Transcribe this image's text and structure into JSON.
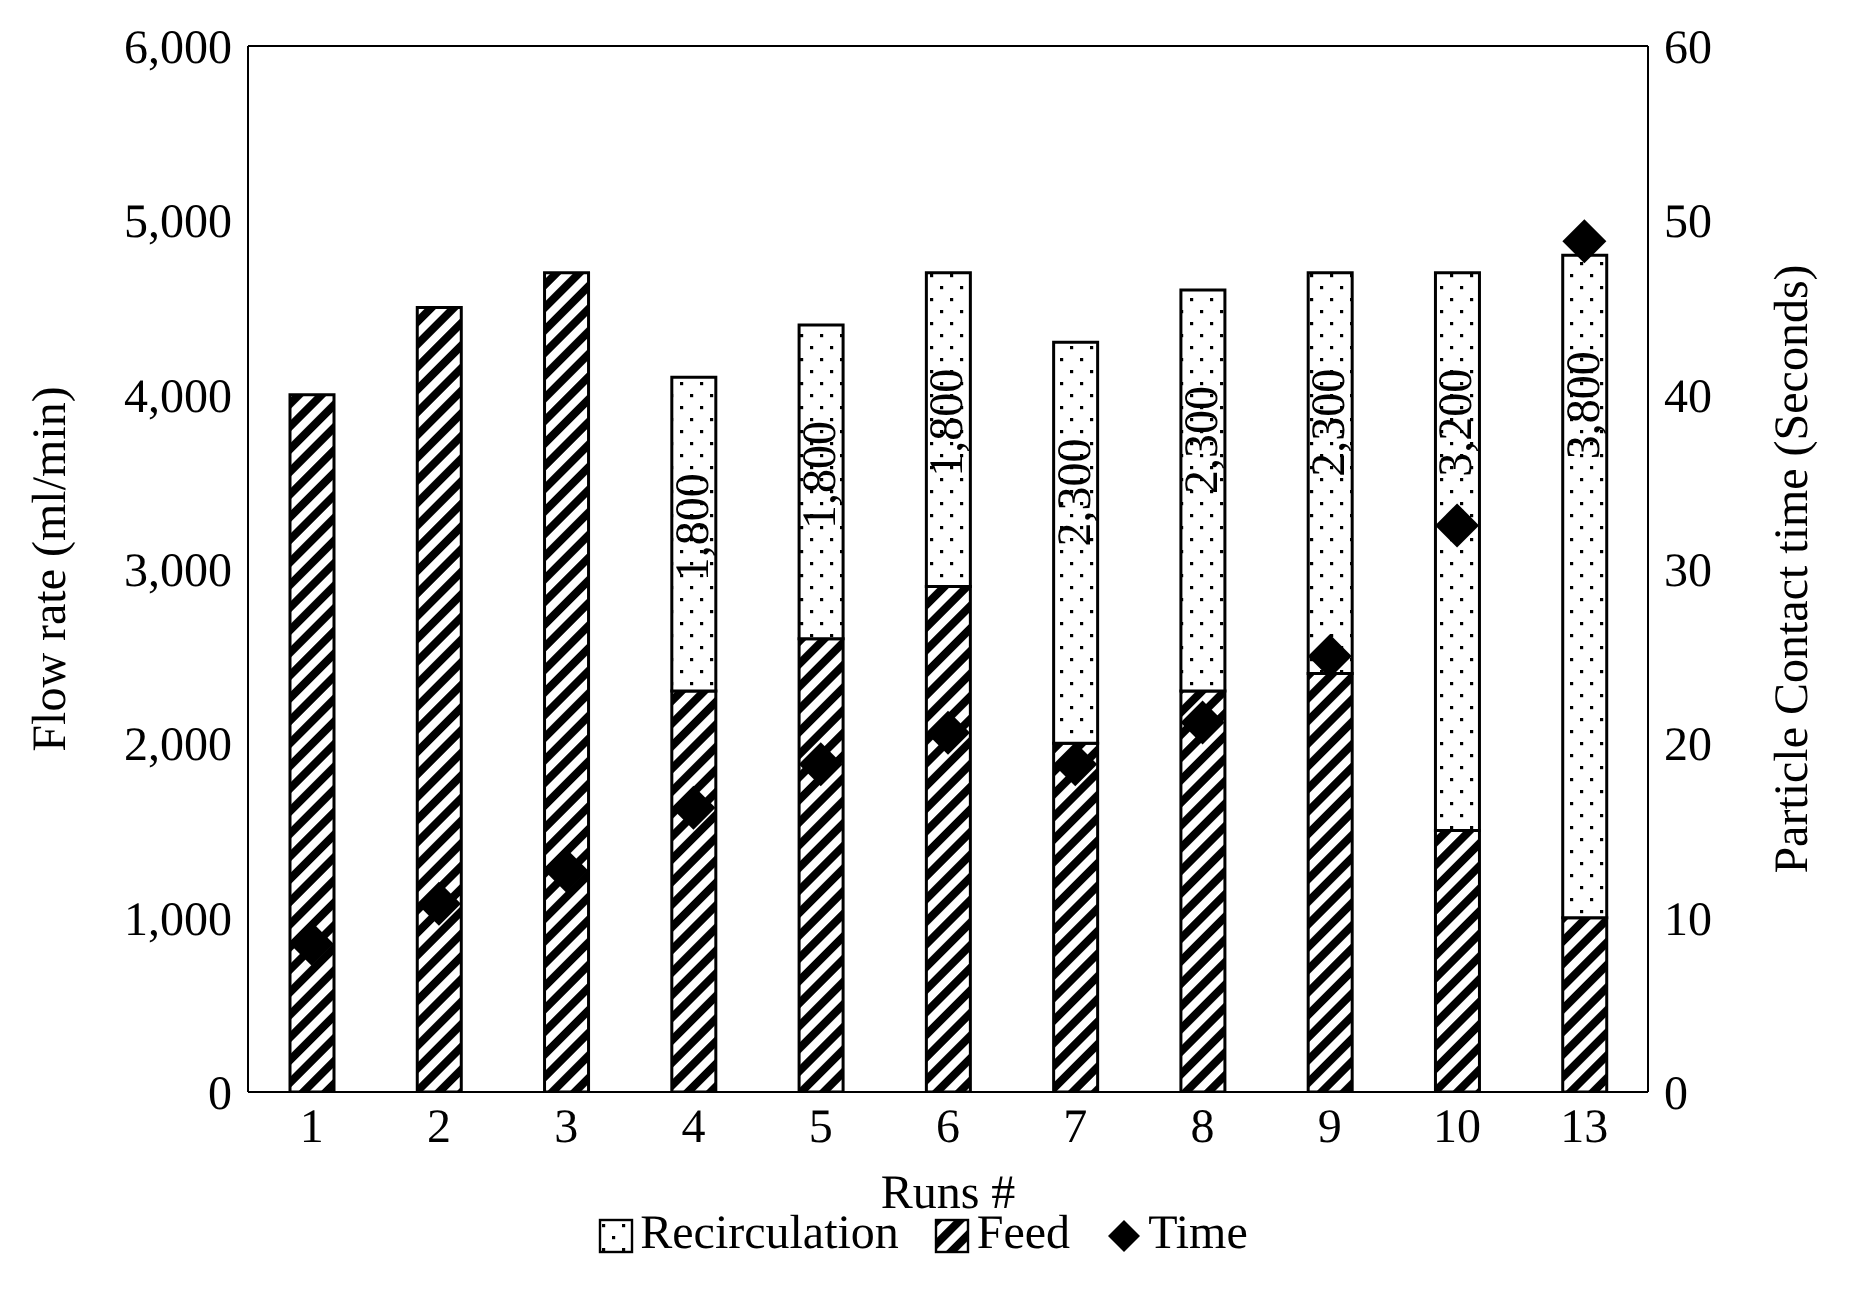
{
  "chart_data": {
    "type": "bar",
    "stacked": true,
    "xlabel": "Runs #",
    "ylabel": "Flow rate (ml/min)",
    "y2label": "Particle Contact time (Seconds)",
    "categories": [
      "1",
      "2",
      "3",
      "4",
      "5",
      "6",
      "7",
      "8",
      "9",
      "10",
      "13"
    ],
    "series": [
      {
        "name": "Feed",
        "color": "#000000",
        "values": [
          4000,
          4500,
          4700,
          2300,
          2600,
          2900,
          2000,
          2300,
          2400,
          1500,
          1000
        ]
      },
      {
        "name": "Recirculation",
        "color": "#000000",
        "values": [
          null,
          null,
          null,
          1800,
          1800,
          1800,
          2300,
          2300,
          2300,
          3200,
          3800
        ],
        "value_labels": [
          null,
          null,
          null,
          "1,800",
          "1,800",
          "1,800",
          "2,300",
          "2,300",
          "2,300",
          "3,200",
          "3,800"
        ]
      },
      {
        "name": "Time",
        "type": "scatter",
        "axis": "y2",
        "color": "#000000",
        "marker": "diamond",
        "values": [
          8.5,
          10.8,
          12.7,
          16.3,
          18.8,
          20.6,
          18.8,
          21.2,
          25,
          32.5,
          48.8
        ]
      }
    ],
    "ylim": [
      0,
      6000
    ],
    "yticks": [
      {
        "value": 0,
        "label": "0"
      },
      {
        "value": 1000,
        "label": "1,000"
      },
      {
        "value": 2000,
        "label": "2,000"
      },
      {
        "value": 3000,
        "label": "3,000"
      },
      {
        "value": 4000,
        "label": "4,000"
      },
      {
        "value": 5000,
        "label": "5,000"
      },
      {
        "value": 6000,
        "label": "6,000"
      }
    ],
    "y2lim": [
      0,
      60
    ],
    "y2ticks": [
      0,
      10,
      20,
      30,
      40,
      50,
      60
    ],
    "grid": false,
    "legend": "bottom"
  }
}
